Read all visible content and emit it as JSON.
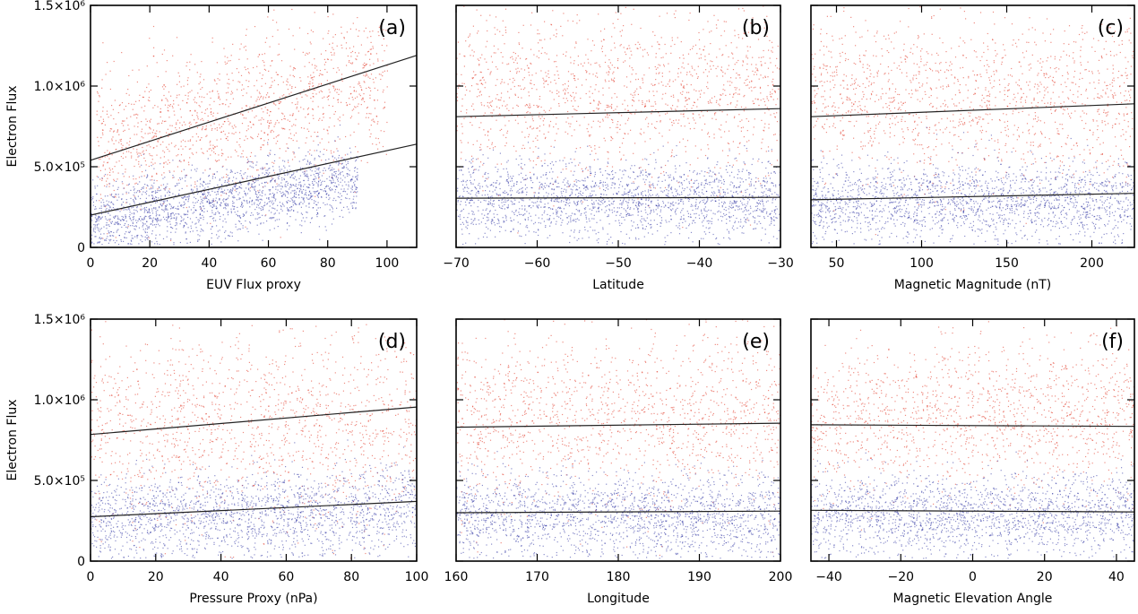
{
  "figure": {
    "ylabel": "Electron Flux"
  },
  "colors": {
    "red_points": "#e0301e",
    "blue_points": "#2a2fa0",
    "fit_line": "#222222"
  },
  "chart_data": [
    {
      "type": "scatter",
      "panel_label": "(a)",
      "xlabel": "EUV Flux proxy",
      "ylabel": "Electron Flux",
      "xlim": [
        0,
        110
      ],
      "ylim": [
        0,
        1500000
      ],
      "xticks": [
        0,
        20,
        40,
        60,
        80,
        100
      ],
      "xtick_labels": [
        "0",
        "20",
        "40",
        "60",
        "80",
        "100"
      ],
      "yticks": [
        0,
        500000,
        1000000,
        1500000
      ],
      "ytick_labels": [
        "0",
        "5.0×10⁵",
        "1.0×10⁶",
        "1.5×10⁶"
      ],
      "fit_lines": [
        {
          "x": [
            0,
            110
          ],
          "y": [
            540000,
            1190000
          ]
        },
        {
          "x": [
            0,
            110
          ],
          "y": [
            200000,
            640000
          ]
        }
      ],
      "red_cloud": {
        "x_range": [
          2,
          100
        ],
        "y_center_start": 620000,
        "y_center_end": 1060000,
        "y_spread": 230000
      },
      "blue_cloud": {
        "x_range": [
          0,
          90
        ],
        "y_center_start": 180000,
        "y_center_end": 420000,
        "y_spread": 110000
      }
    },
    {
      "type": "scatter",
      "panel_label": "(b)",
      "xlabel": "Latitude",
      "xlim": [
        -70,
        -30
      ],
      "ylim": [
        0,
        1500000
      ],
      "xticks": [
        -70,
        -60,
        -50,
        -40,
        -30
      ],
      "xtick_labels": [
        "−70",
        "−60",
        "−50",
        "−40",
        "−30"
      ],
      "yticks": [
        0,
        500000,
        1000000,
        1500000
      ],
      "fit_lines": [
        {
          "x": [
            -70,
            -30
          ],
          "y": [
            810000,
            860000
          ]
        },
        {
          "x": [
            -70,
            -30
          ],
          "y": [
            305000,
            310000
          ]
        }
      ],
      "red_cloud": {
        "x_range": [
          -70,
          -30
        ],
        "y_center_start": 950000,
        "y_center_end": 950000,
        "y_spread": 250000
      },
      "blue_cloud": {
        "x_range": [
          -70,
          -30
        ],
        "y_center_start": 300000,
        "y_center_end": 300000,
        "y_spread": 120000
      }
    },
    {
      "type": "scatter",
      "panel_label": "(c)",
      "xlabel": "Magnetic Magnitude (nT)",
      "xlim": [
        35,
        225
      ],
      "ylim": [
        0,
        1500000
      ],
      "xticks": [
        50,
        100,
        150,
        200
      ],
      "xtick_labels": [
        "50",
        "100",
        "150",
        "200"
      ],
      "yticks": [
        0,
        500000,
        1000000,
        1500000
      ],
      "fit_lines": [
        {
          "x": [
            35,
            225
          ],
          "y": [
            810000,
            890000
          ]
        },
        {
          "x": [
            35,
            225
          ],
          "y": [
            295000,
            335000
          ]
        }
      ],
      "red_cloud": {
        "x_range": [
          35,
          225
        ],
        "y_center_start": 950000,
        "y_center_end": 900000,
        "y_spread": 250000
      },
      "blue_cloud": {
        "x_range": [
          35,
          225
        ],
        "y_center_start": 290000,
        "y_center_end": 300000,
        "y_spread": 120000
      }
    },
    {
      "type": "scatter",
      "panel_label": "(d)",
      "xlabel": "Pressure Proxy (nPa)",
      "ylabel": "Electron Flux",
      "xlim": [
        0,
        100
      ],
      "ylim": [
        0,
        1500000
      ],
      "xticks": [
        0,
        20,
        40,
        60,
        80,
        100
      ],
      "xtick_labels": [
        "0",
        "20",
        "40",
        "60",
        "80",
        "100"
      ],
      "yticks": [
        0,
        500000,
        1000000,
        1500000
      ],
      "ytick_labels": [
        "0",
        "5.0×10⁵",
        "1.0×10⁶",
        "1.5×10⁶"
      ],
      "fit_lines": [
        {
          "x": [
            0,
            100
          ],
          "y": [
            785000,
            955000
          ]
        },
        {
          "x": [
            0,
            100
          ],
          "y": [
            275000,
            370000
          ]
        }
      ],
      "red_cloud": {
        "x_range": [
          0,
          100
        ],
        "y_center_start": 850000,
        "y_center_end": 850000,
        "y_spread": 300000
      },
      "blue_cloud": {
        "x_range": [
          0,
          100
        ],
        "y_center_start": 260000,
        "y_center_end": 320000,
        "y_spread": 130000
      }
    },
    {
      "type": "scatter",
      "panel_label": "(e)",
      "xlabel": "Longitude",
      "xlim": [
        160,
        200
      ],
      "ylim": [
        0,
        1500000
      ],
      "xticks": [
        160,
        170,
        180,
        190,
        200
      ],
      "xtick_labels": [
        "160",
        "170",
        "180",
        "190",
        "200"
      ],
      "yticks": [
        0,
        500000,
        1000000,
        1500000
      ],
      "fit_lines": [
        {
          "x": [
            160,
            200
          ],
          "y": [
            830000,
            855000
          ]
        },
        {
          "x": [
            160,
            200
          ],
          "y": [
            300000,
            310000
          ]
        }
      ],
      "red_cloud": {
        "x_range": [
          160,
          200
        ],
        "y_center_start": 900000,
        "y_center_end": 900000,
        "y_spread": 270000
      },
      "blue_cloud": {
        "x_range": [
          160,
          200
        ],
        "y_center_start": 280000,
        "y_center_end": 280000,
        "y_spread": 130000
      }
    },
    {
      "type": "scatter",
      "panel_label": "(f)",
      "xlabel": "Magnetic Elevation Angle",
      "xlim": [
        -45,
        45
      ],
      "ylim": [
        0,
        1500000
      ],
      "xticks": [
        -40,
        -20,
        0,
        20,
        40
      ],
      "xtick_labels": [
        "−40",
        "−20",
        "0",
        "20",
        "40"
      ],
      "yticks": [
        0,
        500000,
        1000000,
        1500000
      ],
      "fit_lines": [
        {
          "x": [
            -45,
            45
          ],
          "y": [
            845000,
            835000
          ]
        },
        {
          "x": [
            -45,
            45
          ],
          "y": [
            315000,
            305000
          ]
        }
      ],
      "red_cloud": {
        "x_range": [
          -45,
          45
        ],
        "y_center_start": 900000,
        "y_center_end": 900000,
        "y_spread": 230000
      },
      "blue_cloud": {
        "x_range": [
          -45,
          45
        ],
        "y_center_start": 290000,
        "y_center_end": 290000,
        "y_spread": 120000
      }
    }
  ]
}
